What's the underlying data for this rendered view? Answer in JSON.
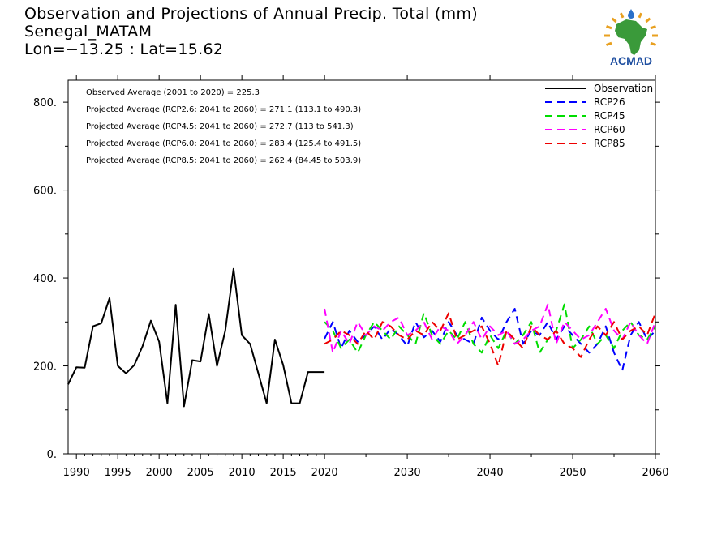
{
  "title": {
    "line1": "Observation and Projections of Annual Precip. Total (mm)",
    "line2": "Senegal_MATAM",
    "line3": "Lon=−13.25 : Lat=15.62"
  },
  "logo": {
    "text": "ACMAD",
    "colors": {
      "africa": "#3a9a3a",
      "rays": "#e8a020",
      "text": "#1f4fa0",
      "drop": "#2a6fc9"
    }
  },
  "annotations": [
    "Observed Average (2001 to 2020) = 225.3",
    "Projected Average (RCP2.6: 2041 to 2060) = 271.1 (113.1 to 490.3)",
    "Projected Average (RCP4.5: 2041 to 2060) = 272.7 (113 to 541.3)",
    "Projected Average (RCP6.0: 2041 to 2060) = 283.4 (125.4 to 491.5)",
    "Projected Average (RCP8.5: 2041 to 2060) = 262.4 (84.45 to 503.9)"
  ],
  "chart_data": {
    "type": "line",
    "xlim": [
      1989,
      2060
    ],
    "ylim": [
      0,
      850
    ],
    "x_ticks": [
      {
        "value": 1990,
        "label": "1990"
      },
      {
        "value": 1995,
        "label": "1995"
      },
      {
        "value": 2000,
        "label": "2000"
      },
      {
        "value": 2005,
        "label": "2005"
      },
      {
        "value": 2010,
        "label": "2010"
      },
      {
        "value": 2015,
        "label": "2015"
      },
      {
        "value": 2020,
        "label": "2020"
      },
      {
        "value": 2030,
        "label": "2030"
      },
      {
        "value": 2040,
        "label": "2040"
      },
      {
        "value": 2050,
        "label": "2050"
      },
      {
        "value": 2060,
        "label": "2060"
      }
    ],
    "y_ticks": [
      {
        "value": 0,
        "label": "0."
      },
      {
        "value": 200,
        "label": "200."
      },
      {
        "value": 400,
        "label": "400."
      },
      {
        "value": 600,
        "label": "600."
      },
      {
        "value": 800,
        "label": "800."
      }
    ],
    "legend_position": "top-right",
    "series": [
      {
        "name": "Observation",
        "color": "#000000",
        "dashed": false,
        "x": [
          1989,
          1990,
          1991,
          1992,
          1993,
          1994,
          1995,
          1996,
          1997,
          1998,
          1999,
          2000,
          2001,
          2002,
          2003,
          2004,
          2005,
          2006,
          2007,
          2008,
          2009,
          2010,
          2011,
          2012,
          2013,
          2014,
          2015,
          2016,
          2017,
          2018,
          2019,
          2020
        ],
        "y": [
          158,
          197,
          196,
          290,
          297,
          354,
          200,
          183,
          202,
          245,
          303,
          255,
          115,
          339,
          108,
          213,
          210,
          318,
          200,
          280,
          421,
          270,
          250,
          183,
          115,
          260,
          202,
          115,
          115,
          186,
          186,
          186
        ]
      },
      {
        "name": "RCP26",
        "color": "#0000ff",
        "dashed": true,
        "x": [
          2020,
          2021,
          2022,
          2023,
          2024,
          2025,
          2026,
          2027,
          2028,
          2029,
          2030,
          2031,
          2032,
          2033,
          2034,
          2035,
          2036,
          2037,
          2038,
          2039,
          2040,
          2041,
          2042,
          2043,
          2044,
          2045,
          2046,
          2047,
          2048,
          2049,
          2050,
          2051,
          2052,
          2053,
          2054,
          2055,
          2056,
          2057,
          2058,
          2059,
          2060
        ],
        "y": [
          262,
          300,
          240,
          280,
          255,
          270,
          290,
          260,
          285,
          270,
          245,
          300,
          265,
          280,
          255,
          300,
          270,
          260,
          250,
          310,
          280,
          260,
          300,
          330,
          250,
          280,
          270,
          300,
          260,
          290,
          270,
          250,
          230,
          250,
          290,
          230,
          190,
          270,
          300,
          260,
          280
        ]
      },
      {
        "name": "RCP45",
        "color": "#00dd00",
        "dashed": true,
        "x": [
          2020,
          2021,
          2022,
          2023,
          2024,
          2025,
          2026,
          2027,
          2028,
          2029,
          2030,
          2031,
          2032,
          2033,
          2034,
          2035,
          2036,
          2037,
          2038,
          2039,
          2040,
          2041,
          2042,
          2043,
          2044,
          2045,
          2046,
          2047,
          2048,
          2049,
          2050,
          2051,
          2052,
          2053,
          2054,
          2055,
          2056,
          2057,
          2058,
          2059,
          2060
        ],
        "y": [
          300,
          280,
          240,
          260,
          230,
          270,
          300,
          280,
          260,
          290,
          270,
          250,
          320,
          270,
          250,
          280,
          260,
          300,
          250,
          230,
          270,
          240,
          280,
          250,
          270,
          300,
          230,
          260,
          280,
          340,
          240,
          260,
          290,
          250,
          270,
          240,
          280,
          300,
          270,
          260,
          290
        ]
      },
      {
        "name": "RCP60",
        "color": "#ff00ff",
        "dashed": true,
        "x": [
          2020,
          2021,
          2022,
          2023,
          2024,
          2025,
          2026,
          2027,
          2028,
          2029,
          2030,
          2031,
          2032,
          2033,
          2034,
          2035,
          2036,
          2037,
          2038,
          2039,
          2040,
          2041,
          2042,
          2043,
          2044,
          2045,
          2046,
          2047,
          2048,
          2049,
          2050,
          2051,
          2052,
          2053,
          2054,
          2055,
          2056,
          2057,
          2058,
          2059,
          2060
        ],
        "y": [
          330,
          230,
          280,
          250,
          300,
          270,
          290,
          280,
          300,
          310,
          270,
          280,
          300,
          260,
          290,
          280,
          250,
          270,
          300,
          260,
          290,
          270,
          280,
          250,
          260,
          280,
          290,
          340,
          250,
          300,
          280,
          260,
          270,
          300,
          330,
          280,
          260,
          300,
          270,
          250,
          300
        ]
      },
      {
        "name": "RCP85",
        "color": "#ee0000",
        "dashed": true,
        "x": [
          2020,
          2021,
          2022,
          2023,
          2024,
          2025,
          2026,
          2027,
          2028,
          2029,
          2030,
          2031,
          2032,
          2033,
          2034,
          2035,
          2036,
          2037,
          2038,
          2039,
          2040,
          2041,
          2042,
          2043,
          2044,
          2045,
          2046,
          2047,
          2048,
          2049,
          2050,
          2051,
          2052,
          2053,
          2054,
          2055,
          2056,
          2057,
          2058,
          2059,
          2060
        ],
        "y": [
          250,
          260,
          280,
          270,
          250,
          280,
          260,
          300,
          290,
          270,
          260,
          280,
          270,
          300,
          280,
          320,
          260,
          270,
          280,
          290,
          250,
          200,
          280,
          260,
          240,
          290,
          270,
          260,
          280,
          250,
          240,
          220,
          260,
          290,
          270,
          300,
          260,
          280,
          290,
          270,
          320
        ]
      }
    ]
  }
}
